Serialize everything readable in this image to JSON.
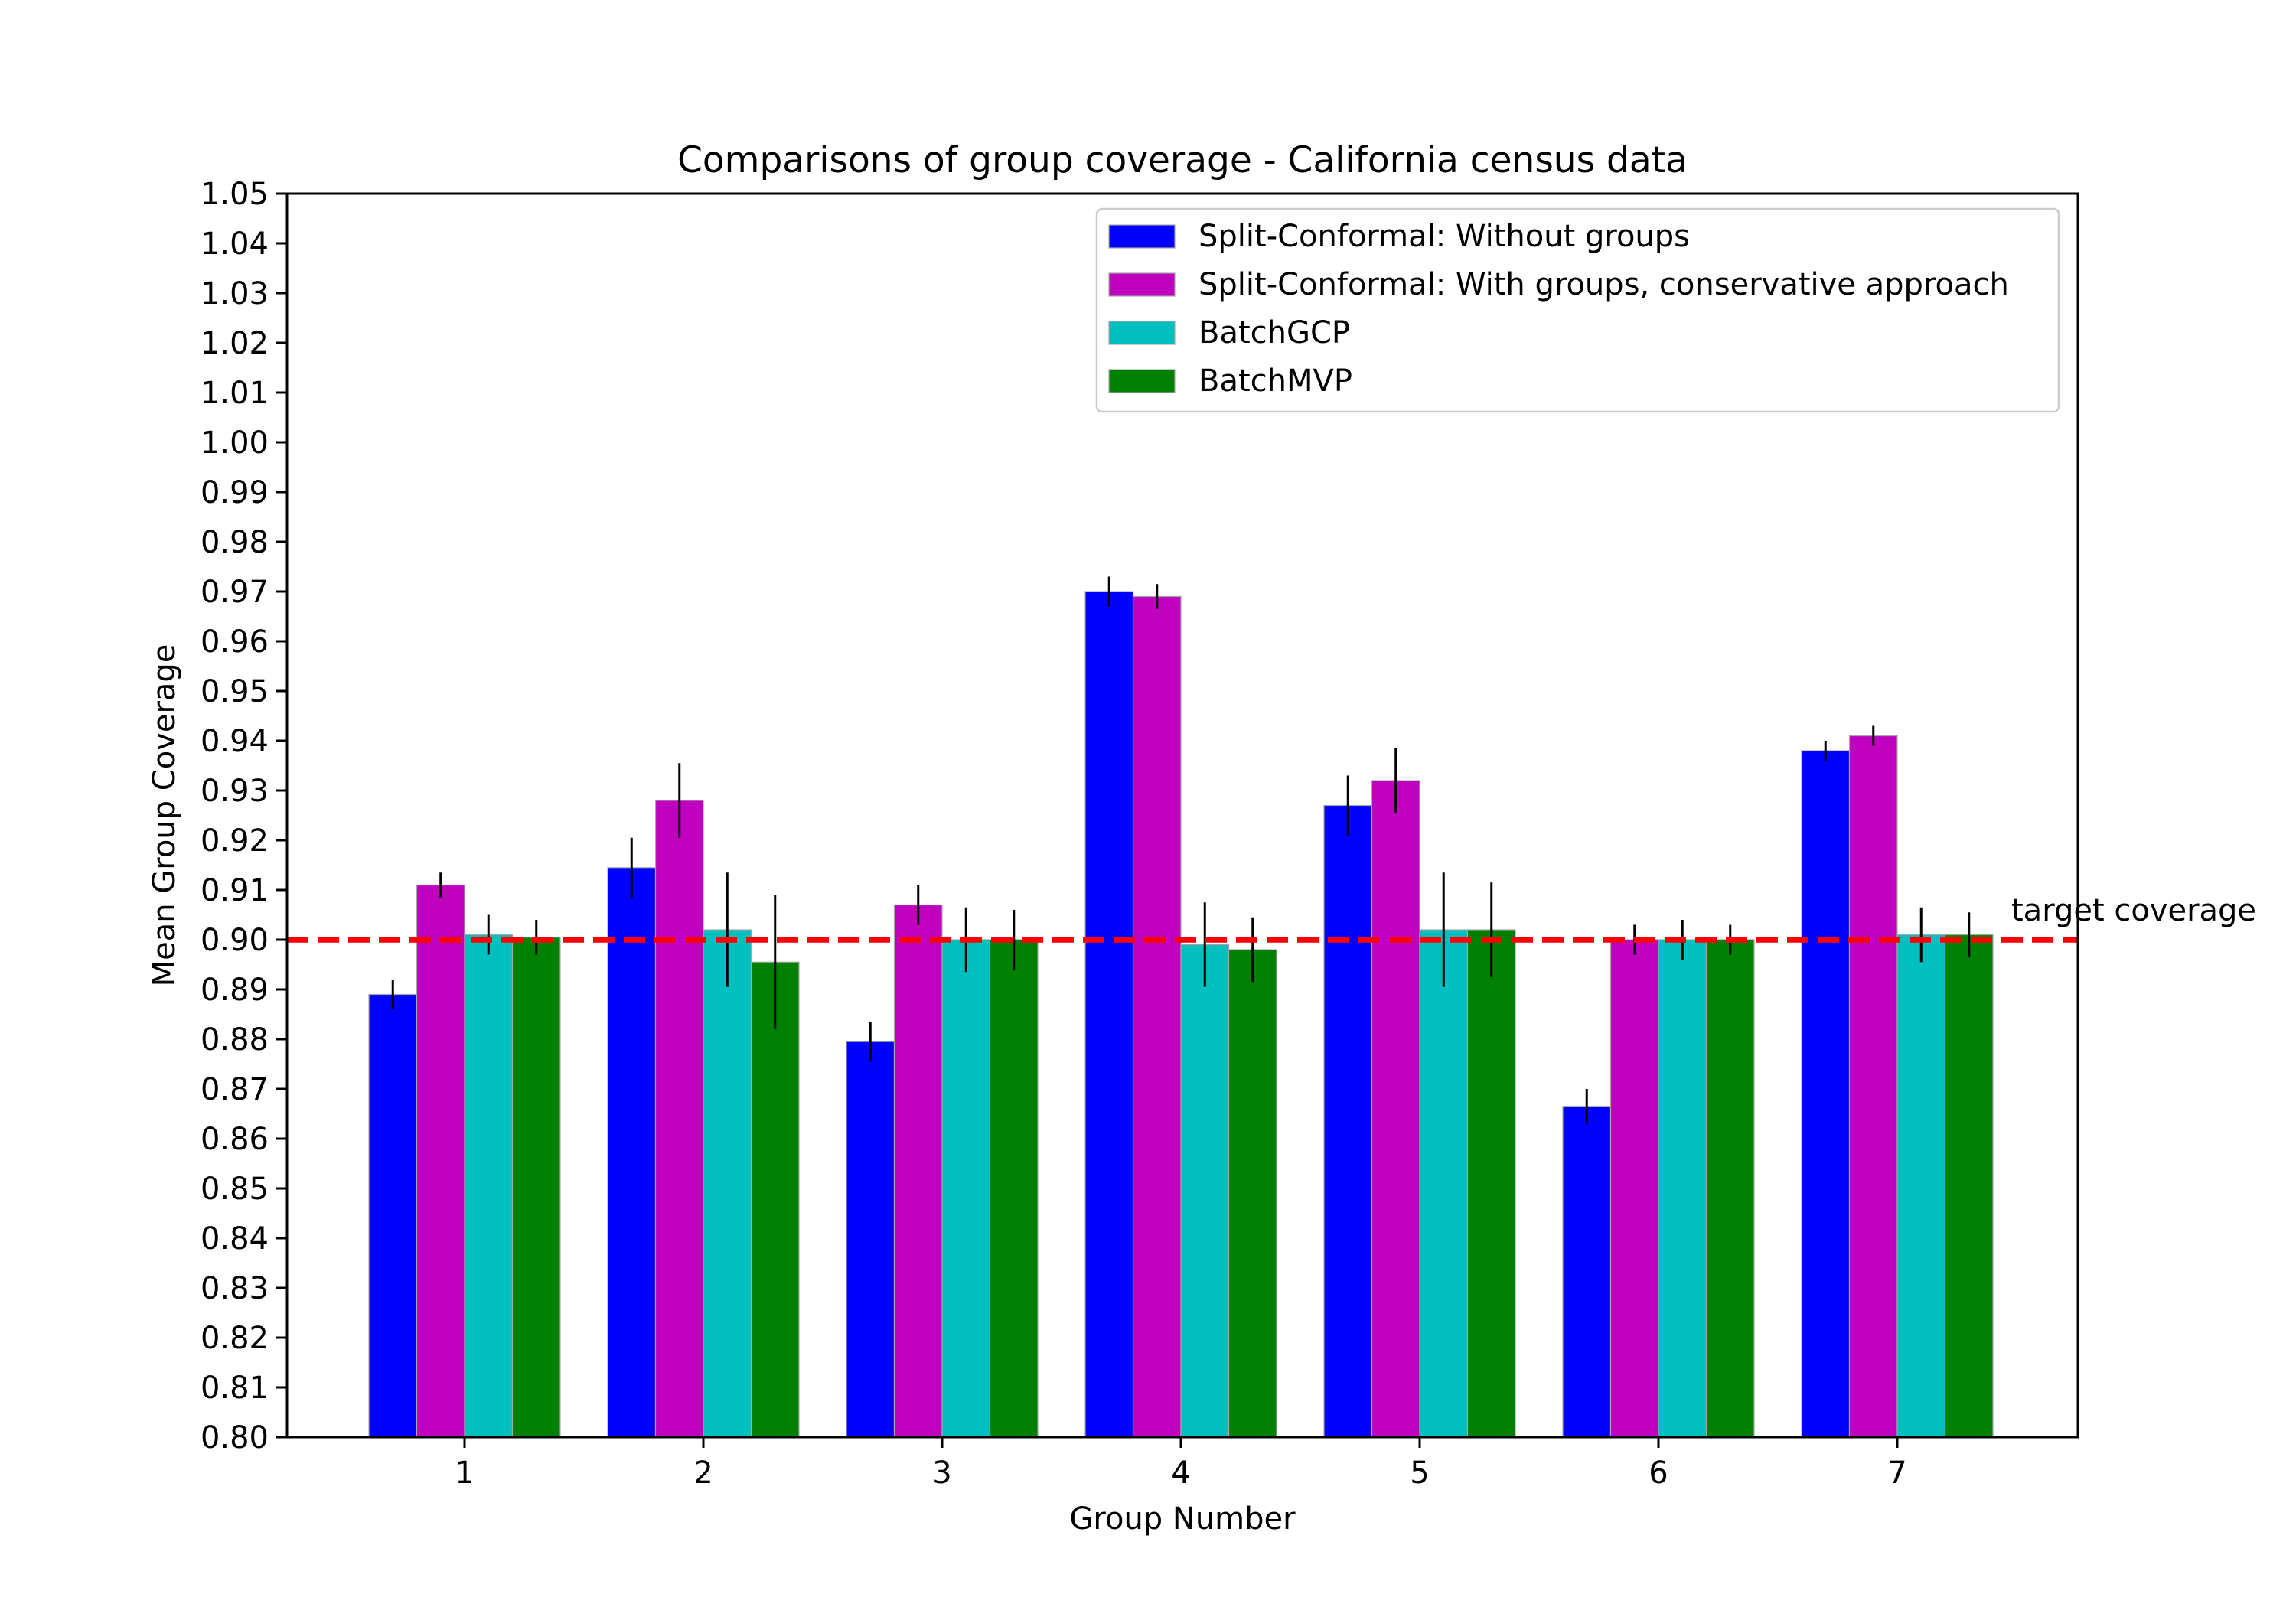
{
  "chart_data": {
    "type": "bar",
    "title": "Comparisons of group coverage - California census data",
    "xlabel": "Group Number",
    "ylabel": "Mean Group Coverage",
    "categories": [
      "1",
      "2",
      "3",
      "4",
      "5",
      "6",
      "7"
    ],
    "ylim": [
      0.8,
      1.05
    ],
    "yticks": [
      "0.80",
      "0.81",
      "0.82",
      "0.83",
      "0.84",
      "0.85",
      "0.86",
      "0.87",
      "0.88",
      "0.89",
      "0.90",
      "0.91",
      "0.92",
      "0.93",
      "0.94",
      "0.95",
      "0.96",
      "0.97",
      "0.98",
      "0.99",
      "1.00",
      "1.01",
      "1.02",
      "1.03",
      "1.04",
      "1.05"
    ],
    "series": [
      {
        "name": "Split-Conformal: Without groups",
        "color": "#0000ff",
        "values": [
          0.889,
          0.9145,
          0.8795,
          0.97,
          0.927,
          0.8665,
          0.938
        ],
        "errors": [
          0.003,
          0.006,
          0.004,
          0.003,
          0.006,
          0.0035,
          0.002
        ]
      },
      {
        "name": "Split-Conformal: With groups, conservative approach",
        "color": "#bf00bf",
        "values": [
          0.911,
          0.928,
          0.907,
          0.969,
          0.932,
          0.9,
          0.941
        ],
        "errors": [
          0.0025,
          0.0075,
          0.004,
          0.0025,
          0.0065,
          0.003,
          0.002
        ]
      },
      {
        "name": "BatchGCP",
        "color": "#00bfbf",
        "values": [
          0.901,
          0.902,
          0.9,
          0.899,
          0.902,
          0.9,
          0.901
        ],
        "errors": [
          0.004,
          0.0115,
          0.0065,
          0.0085,
          0.0115,
          0.004,
          0.0055
        ]
      },
      {
        "name": "BatchMVP",
        "color": "#008000",
        "values": [
          0.9005,
          0.8955,
          0.9,
          0.898,
          0.902,
          0.9,
          0.901
        ],
        "errors": [
          0.0035,
          0.0135,
          0.006,
          0.0065,
          0.0095,
          0.003,
          0.0045
        ]
      }
    ],
    "reference_line": {
      "value": 0.9,
      "label": "target coverage",
      "color": "#ff0000",
      "style": "dashed"
    },
    "legend_position": "top-right",
    "grid": false
  }
}
